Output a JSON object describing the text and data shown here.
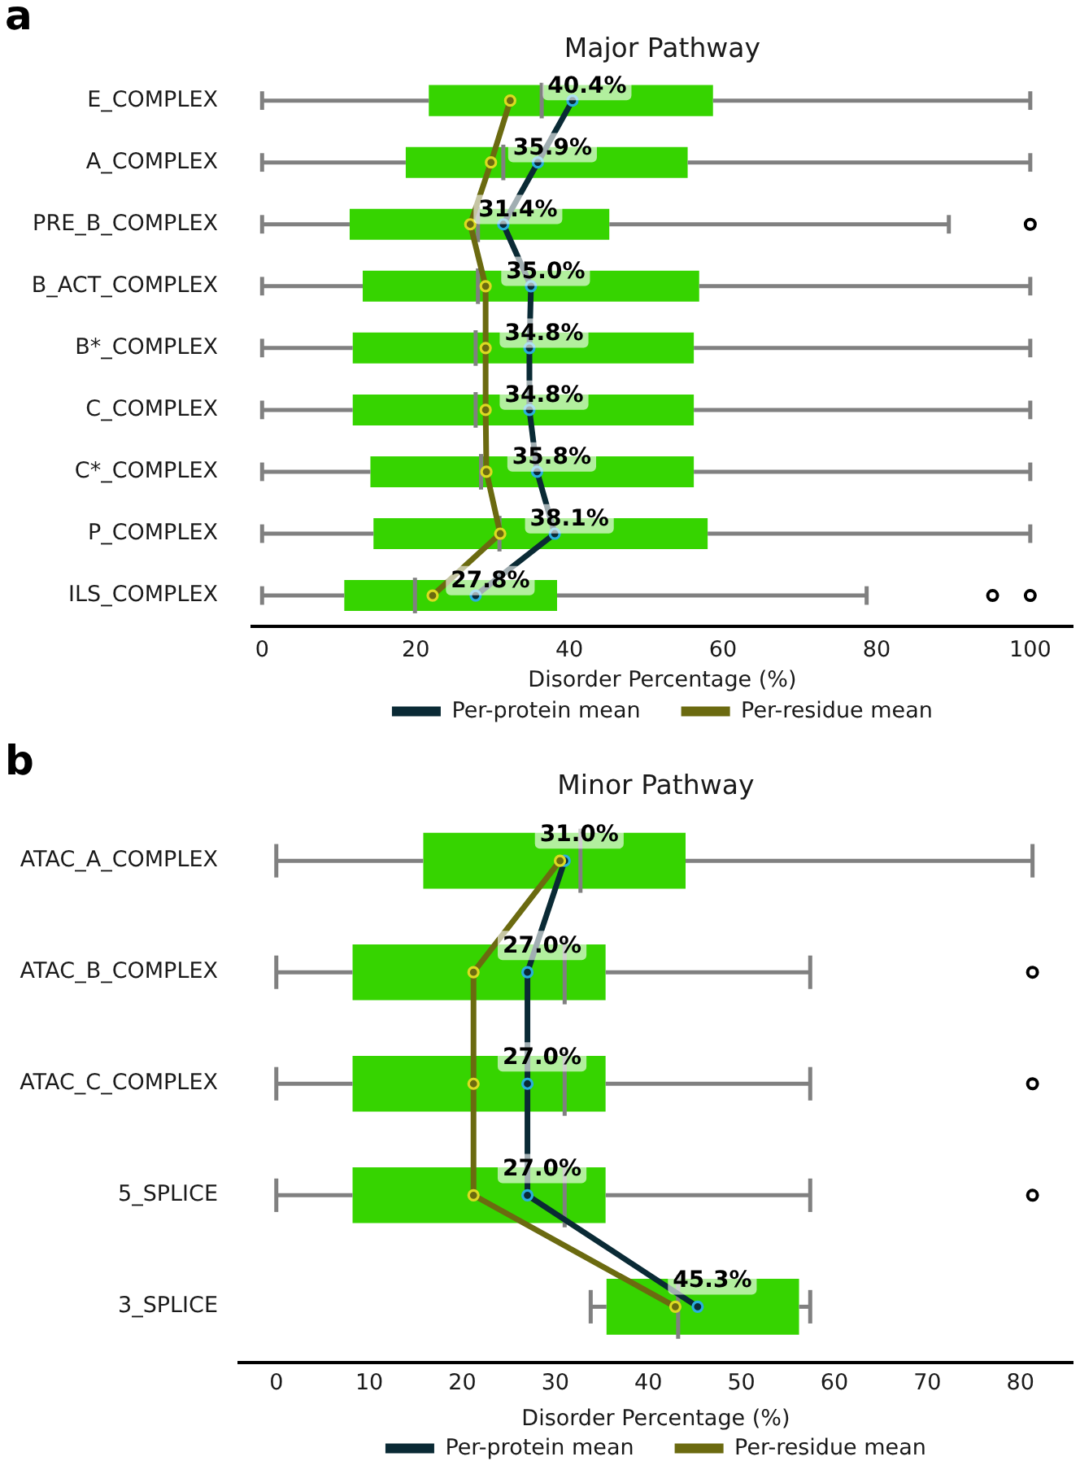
{
  "chart_data": [
    {
      "type": "box",
      "title": "Major Pathway",
      "xlabel": "Disorder Percentage (%)",
      "orientation": "horizontal",
      "annotations": [
        "a"
      ],
      "legend": "bottom",
      "marker": "circle",
      "categories": [
        "E_COMPLEX",
        "A_COMPLEX",
        "PRE_B_COMPLEX",
        "B_ACT_COMPLEX",
        "B*_COMPLEX",
        "C_COMPLEX",
        "C*_COMPLEX",
        "P_COMPLEX",
        "ILS_COMPLEX"
      ],
      "xlim": [
        -1.3,
        105.5
      ],
      "xticks": [
        0,
        20,
        40,
        60,
        80,
        100
      ],
      "series": [
        {
          "color": "#36d400",
          "boxes": [
            {
              "low": 0,
              "q1": 21.7,
              "median": 36.4,
              "q3": 58.7,
              "high": 100
            },
            {
              "low": 0,
              "q1": 18.7,
              "median": 31.4,
              "q3": 55.4,
              "high": 100
            },
            {
              "low": 0,
              "q1": 11.4,
              "median": 28.1,
              "q3": 45.2,
              "high": 89.4,
              "outliers": [
                100
              ]
            },
            {
              "low": 0,
              "q1": 13.1,
              "median": 28.1,
              "q3": 56.9,
              "high": 100
            },
            {
              "low": 0,
              "q1": 11.8,
              "median": 27.8,
              "q3": 56.2,
              "high": 100
            },
            {
              "low": 0,
              "q1": 11.8,
              "median": 27.8,
              "q3": 56.2,
              "high": 100
            },
            {
              "low": 0,
              "q1": 14.1,
              "median": 28.5,
              "q3": 56.2,
              "high": 100
            },
            {
              "low": 0,
              "q1": 14.5,
              "median": 30.9,
              "q3": 58.0,
              "high": 100
            },
            {
              "low": 0,
              "q1": 10.7,
              "median": 19.9,
              "q3": 38.4,
              "high": 78.7,
              "outliers": [
                95.1,
                100
              ]
            }
          ]
        },
        {
          "type": "line",
          "name": "Per-protein mean",
          "color": "#0a2a35",
          "values": [
            40.4,
            35.9,
            31.4,
            35.0,
            34.8,
            34.8,
            35.8,
            38.1,
            27.8
          ],
          "value_labels": [
            "40.4%",
            "35.9%",
            "31.4%",
            "35.0%",
            "34.8%",
            "34.8%",
            "35.8%",
            "38.1%",
            "27.8%"
          ]
        },
        {
          "type": "line",
          "name": "Per-residue mean",
          "color": "#6b6a10",
          "values": [
            32.3,
            29.8,
            27.1,
            29.1,
            29.1,
            29.1,
            29.2,
            31.0,
            22.2
          ]
        }
      ]
    },
    {
      "type": "box",
      "title": "Minor Pathway",
      "xlabel": "Disorder Percentage (%)",
      "orientation": "horizontal",
      "annotations": [
        "b"
      ],
      "legend": "bottom",
      "marker": "circle",
      "categories": [
        "ATAC_A_COMPLEX",
        "ATAC_B_COMPLEX",
        "ATAC_C_COMPLEX",
        "5_SPLICE",
        "3_SPLICE"
      ],
      "xlim": [
        -4,
        85.6
      ],
      "xticks": [
        0,
        10,
        20,
        30,
        40,
        50,
        60,
        70,
        80
      ],
      "series": [
        {
          "color": "#36d400",
          "boxes": [
            {
              "low": 0,
              "q1": 15.8,
              "median": 32.7,
              "q3": 44.0,
              "high": 81.3
            },
            {
              "low": 0,
              "q1": 8.2,
              "median": 31.0,
              "q3": 35.4,
              "high": 57.4,
              "outliers": [
                81.3
              ]
            },
            {
              "low": 0,
              "q1": 8.2,
              "median": 31.0,
              "q3": 35.4,
              "high": 57.4,
              "outliers": [
                81.3
              ]
            },
            {
              "low": 0,
              "q1": 8.2,
              "median": 31.0,
              "q3": 35.4,
              "high": 57.4,
              "outliers": [
                81.3
              ]
            },
            {
              "low": 33.8,
              "q1": 35.5,
              "median": 43.2,
              "q3": 56.2,
              "high": 57.4
            }
          ]
        },
        {
          "type": "line",
          "name": "Per-protein mean",
          "color": "#0a2a35",
          "values": [
            31.0,
            27.0,
            27.0,
            27.0,
            45.3
          ],
          "value_labels": [
            "31.0%",
            "27.0%",
            "27.0%",
            "27.0%",
            "45.3%"
          ]
        },
        {
          "type": "line",
          "name": "Per-residue mean",
          "color": "#6b6a10",
          "values": [
            30.5,
            21.2,
            21.2,
            21.2,
            42.9
          ]
        }
      ]
    }
  ]
}
